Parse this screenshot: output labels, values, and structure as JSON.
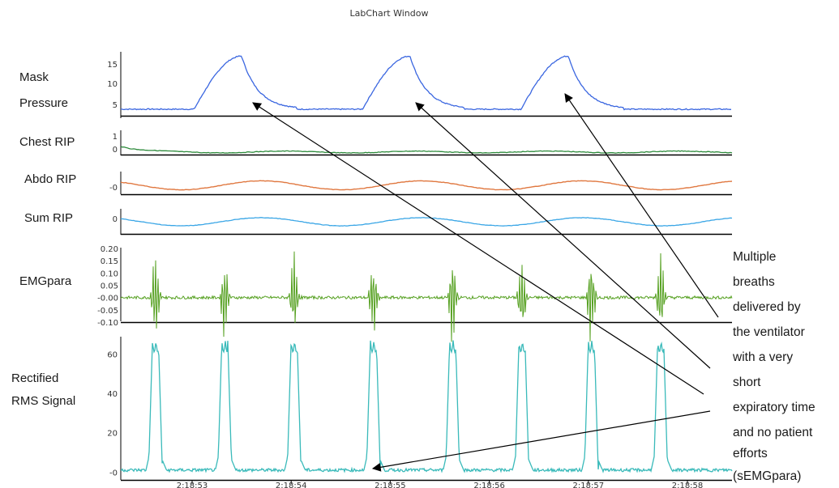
{
  "window_title": "LabChart Window",
  "annotation": [
    "Multiple",
    "breaths",
    "delivered by",
    "the ventilator",
    "with a very",
    "short",
    "expiratory time",
    "and no patient",
    "efforts",
    "(sEMGpara)"
  ],
  "colors": {
    "mask_pressure": "#3a66e0",
    "chest_rip": "#2e8b3c",
    "abdo_rip": "#e07840",
    "sum_rip": "#3aa6e6",
    "emg": "#55a020",
    "rms": "#3ababa",
    "axis": "#000000",
    "arrow": "#000000"
  },
  "chart_data": {
    "type": "line",
    "title": "LabChart Window",
    "x_ticks": [
      "2:18:53",
      "2:18:54",
      "2:18:55",
      "2:18:56",
      "2:18:57",
      "2:18:58"
    ],
    "channels": [
      {
        "id": "mask_pressure",
        "label": [
          "Mask",
          "Pressure"
        ],
        "ticks": [
          "15",
          "10",
          "5"
        ],
        "tick_values": [
          15,
          10,
          5
        ],
        "ylim": [
          2.5,
          17.5
        ],
        "baseline": 4.2,
        "peak": 16.5,
        "peak_times": [
          "2:18:53.5",
          "2:18:55.2",
          "2:18:56.8"
        ]
      },
      {
        "id": "chest_rip",
        "label": [
          "Chest RIP"
        ],
        "ticks": [
          "1",
          "0"
        ],
        "tick_values": [
          1,
          0
        ],
        "ylim": [
          -0.2,
          1.2
        ]
      },
      {
        "id": "abdo_rip",
        "label": [
          "Abdo RIP"
        ],
        "ticks": [
          "-0"
        ],
        "tick_values": [
          0
        ],
        "ylim": [
          -1,
          1
        ]
      },
      {
        "id": "sum_rip",
        "label": [
          "Sum RIP"
        ],
        "ticks": [
          "0"
        ],
        "tick_values": [
          0
        ],
        "ylim": [
          -1,
          1
        ]
      },
      {
        "id": "emg",
        "label": [
          "EMGpara"
        ],
        "ticks": [
          "0.20",
          "0.15",
          "0.10",
          "0.05",
          "-0.00",
          "-0.05",
          "-0.10"
        ],
        "tick_values": [
          0.2,
          0.15,
          0.1,
          0.05,
          0,
          -0.05,
          -0.1
        ],
        "ylim": [
          -0.1,
          0.2
        ],
        "burst_times": [
          "2:18:52.6",
          "2:18:53.3",
          "2:18:54.0",
          "2:18:54.8",
          "2:18:55.6",
          "2:18:56.3",
          "2:18:57.0",
          "2:18:57.7"
        ]
      },
      {
        "id": "rms",
        "label": [
          "Rectified",
          "RMS Signal"
        ],
        "ticks": [
          "60",
          "40",
          "20",
          "-0"
        ],
        "tick_values": [
          60,
          40,
          20,
          0
        ],
        "ylim": [
          -4,
          68
        ],
        "baseline": 1,
        "peak": 67,
        "spike_times": [
          "2:18:52.6",
          "2:18:53.3",
          "2:18:54.0",
          "2:18:54.8",
          "2:18:55.6",
          "2:18:56.3",
          "2:18:57.0",
          "2:18:57.7"
        ]
      }
    ]
  }
}
